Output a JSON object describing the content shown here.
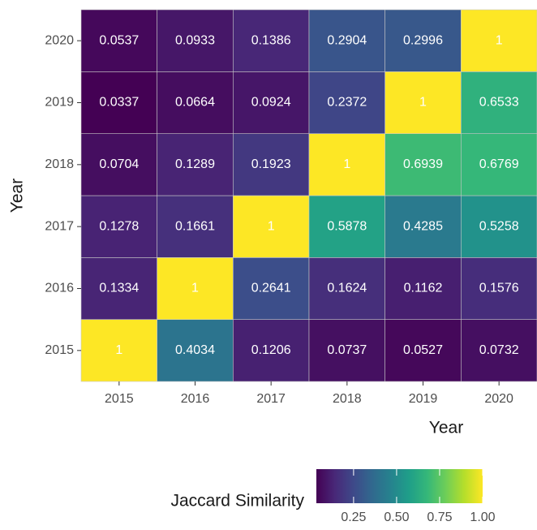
{
  "chart_data": {
    "type": "heatmap",
    "x_categories": [
      "2015",
      "2016",
      "2017",
      "2018",
      "2019",
      "2020"
    ],
    "y_categories": [
      "2015",
      "2016",
      "2017",
      "2018",
      "2019",
      "2020"
    ],
    "values": [
      [
        1,
        0.4034,
        0.1206,
        0.0737,
        0.0527,
        0.0732
      ],
      [
        0.1334,
        1,
        0.2641,
        0.1624,
        0.1162,
        0.1576
      ],
      [
        0.1278,
        0.1661,
        1,
        0.5878,
        0.4285,
        0.5258
      ],
      [
        0.0704,
        0.1289,
        0.1923,
        1,
        0.6939,
        0.6769
      ],
      [
        0.0337,
        0.0664,
        0.0924,
        0.2372,
        1,
        0.6533
      ],
      [
        0.0537,
        0.0933,
        0.1386,
        0.2904,
        0.2996,
        1
      ]
    ],
    "xlabel": "Year",
    "ylabel": "Year",
    "legend_title": "Jaccard Similarity",
    "clim": [
      0.0337,
      1
    ],
    "cticks": [
      0.25,
      {
        "value": 0.5,
        "label": "0.50"
      },
      0.75,
      {
        "value": 1,
        "label": "1.00"
      }
    ],
    "colors": [
      "#440154",
      "#482878",
      "#3e4989",
      "#31688e",
      "#26828e",
      "#1f9e89",
      "#35b779",
      "#6ece58",
      "#b5de2b",
      "#fde725"
    ]
  }
}
